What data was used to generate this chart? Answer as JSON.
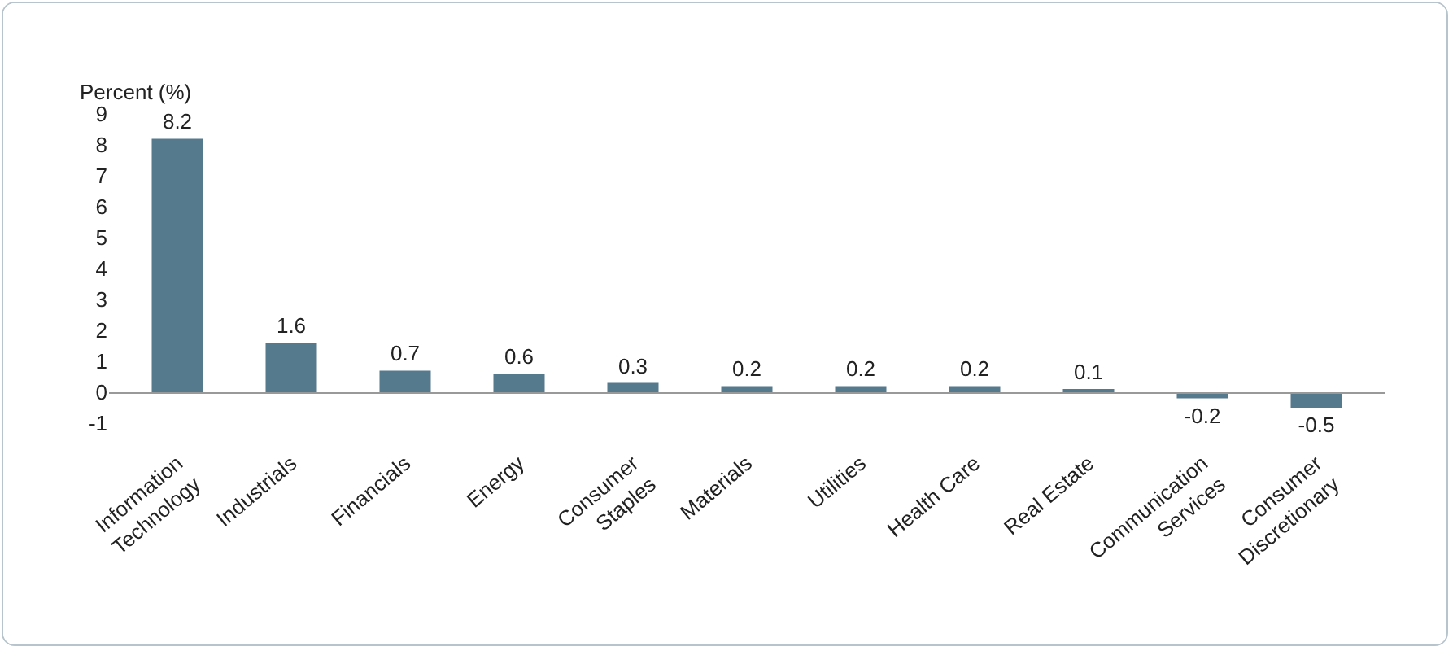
{
  "chart_data": {
    "type": "bar",
    "ylabel": "Percent (%)",
    "categories": [
      "Information\nTechnology",
      "Industrials",
      "Financials",
      "Energy",
      "Consumer\nStaples",
      "Materials",
      "Utilities",
      "Health Care",
      "Real Estate",
      "Communication\nServices",
      "Consumer\nDiscretionary"
    ],
    "values": [
      8.2,
      1.6,
      0.7,
      0.6,
      0.3,
      0.2,
      0.2,
      0.2,
      0.1,
      -0.2,
      -0.5
    ],
    "color": "#557a8e",
    "ylim": [
      -1,
      9
    ],
    "yticks": [
      -1,
      0,
      1,
      2,
      3,
      4,
      5,
      6,
      7,
      8,
      9
    ],
    "data_labels": true
  }
}
